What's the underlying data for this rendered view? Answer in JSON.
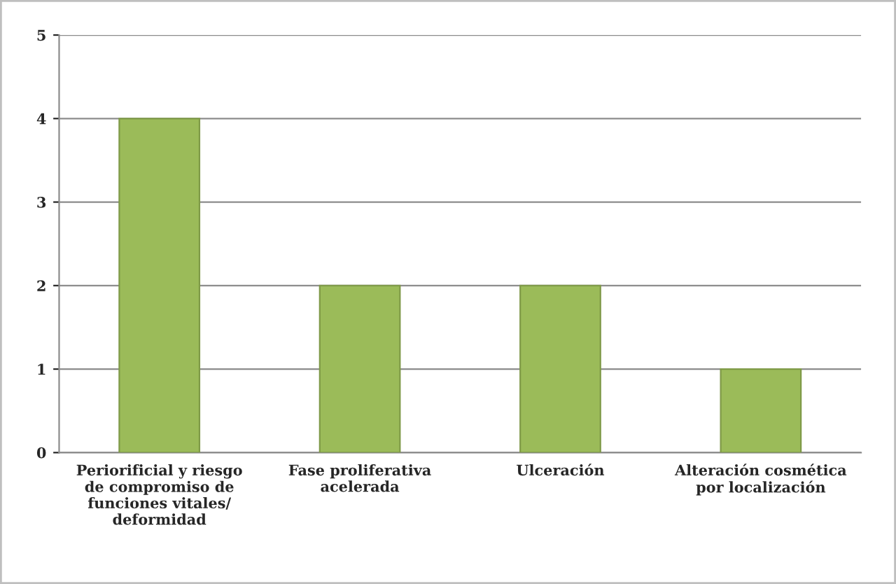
{
  "chart_data": {
    "type": "bar",
    "categories": [
      "Periorificial y riesgo\nde compromiso de\nfunciones vitales/\ndeformidad",
      "Fase proliferativa\nacelerada",
      "Ulceración",
      "Alteración cosmética\npor localización"
    ],
    "values": [
      4,
      2,
      2,
      1
    ],
    "color": "#9bbb59",
    "ylim": [
      0,
      5
    ],
    "yticks": [
      0,
      1,
      2,
      3,
      4,
      5
    ],
    "grid": "y"
  }
}
